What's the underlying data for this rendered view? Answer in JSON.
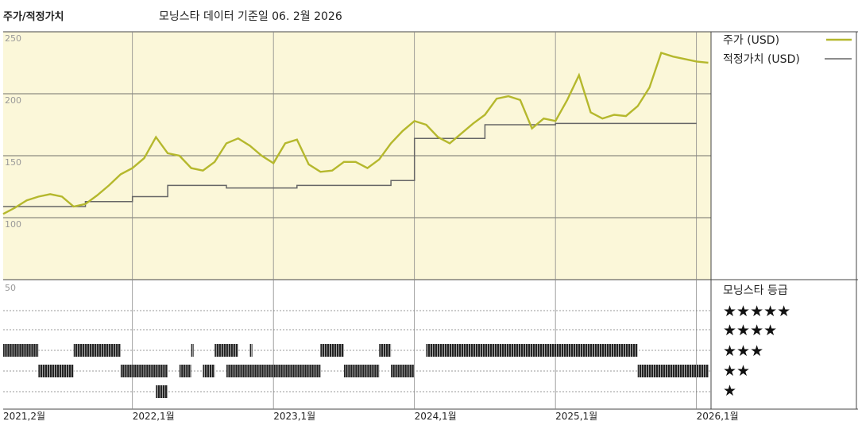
{
  "header": {
    "title": "주가/적정가치",
    "subtitle": "모닝스타 데이터 기준일 06. 2월 2026"
  },
  "colors": {
    "price": "#b5b82d",
    "fair_value": "#666666",
    "plot_bg": "#fbf7d9",
    "bars": "#222222"
  },
  "chart_data": [
    {
      "type": "line",
      "title": "",
      "ylim": [
        50,
        250
      ],
      "y_ticks": [
        "250",
        "200",
        "150",
        "100"
      ],
      "x_ticks": [
        "2021,2월",
        "2022,1월",
        "2023,1월",
        "2024,1월",
        "2025,1월",
        "2026,1월"
      ],
      "legend_position": "right",
      "grid": true,
      "series": [
        {
          "name": "주가 (USD)",
          "x": [
            "2021-02",
            "2021-03",
            "2021-04",
            "2021-05",
            "2021-06",
            "2021-07",
            "2021-08",
            "2021-09",
            "2021-10",
            "2021-11",
            "2021-12",
            "2022-01",
            "2022-02",
            "2022-03",
            "2022-04",
            "2022-05",
            "2022-06",
            "2022-07",
            "2022-08",
            "2022-09",
            "2022-10",
            "2022-11",
            "2022-12",
            "2023-01",
            "2023-02",
            "2023-03",
            "2023-04",
            "2023-05",
            "2023-06",
            "2023-07",
            "2023-08",
            "2023-09",
            "2023-10",
            "2023-11",
            "2023-12",
            "2024-01",
            "2024-02",
            "2024-03",
            "2024-04",
            "2024-05",
            "2024-06",
            "2024-07",
            "2024-08",
            "2024-09",
            "2024-10",
            "2024-11",
            "2024-12",
            "2025-01",
            "2025-02",
            "2025-03",
            "2025-04",
            "2025-05",
            "2025-06",
            "2025-07",
            "2025-08",
            "2025-09",
            "2025-10",
            "2025-11",
            "2025-12",
            "2026-01",
            "2026-02"
          ],
          "values": [
            103,
            108,
            114,
            117,
            119,
            117,
            109,
            111,
            118,
            126,
            135,
            140,
            148,
            165,
            152,
            150,
            140,
            138,
            145,
            160,
            164,
            158,
            150,
            144,
            160,
            163,
            143,
            137,
            138,
            145,
            145,
            140,
            147,
            160,
            170,
            178,
            175,
            165,
            160,
            168,
            176,
            183,
            196,
            198,
            195,
            172,
            180,
            178,
            195,
            215,
            185,
            180,
            183,
            182,
            190,
            205,
            233,
            230,
            228,
            226,
            225
          ]
        },
        {
          "name": "적정가치 (USD)",
          "x": [
            "2021-02",
            "2021-06",
            "2021-09",
            "2022-01",
            "2022-04",
            "2022-09",
            "2023-03",
            "2023-11",
            "2024-01",
            "2024-07",
            "2025-01",
            "2026-01"
          ],
          "values": [
            109,
            109,
            113,
            117,
            126,
            124,
            126,
            130,
            164,
            175,
            176,
            176
          ]
        }
      ]
    },
    {
      "type": "bar",
      "title": "모닝스타 등급",
      "legend_labels": [
        "★★★★★",
        "★★★★",
        "★★★",
        "★★",
        "★"
      ],
      "note_y_top": "50",
      "series": [
        {
          "name": "3",
          "ranges": [
            [
              "2021-02",
              "2021-05"
            ],
            [
              "2021-08",
              "2021-12"
            ],
            [
              "2022-06",
              "2022-06"
            ],
            [
              "2022-08",
              "2022-10"
            ],
            [
              "2022-11",
              "2022-11"
            ],
            [
              "2023-05",
              "2023-07"
            ],
            [
              "2023-10",
              "2023-11"
            ],
            [
              "2024-02",
              "2025-08"
            ]
          ]
        },
        {
          "name": "2",
          "ranges": [
            [
              "2021-05",
              "2021-08"
            ],
            [
              "2021-12",
              "2022-04"
            ],
            [
              "2022-05",
              "2022-06"
            ],
            [
              "2022-07",
              "2022-08"
            ],
            [
              "2022-09",
              "2023-05"
            ],
            [
              "2023-07",
              "2023-10"
            ],
            [
              "2023-11",
              "2024-01"
            ],
            [
              "2025-08",
              "2026-02"
            ]
          ]
        },
        {
          "name": "1",
          "ranges": [
            [
              "2022-03",
              "2022-04"
            ]
          ]
        }
      ]
    }
  ]
}
